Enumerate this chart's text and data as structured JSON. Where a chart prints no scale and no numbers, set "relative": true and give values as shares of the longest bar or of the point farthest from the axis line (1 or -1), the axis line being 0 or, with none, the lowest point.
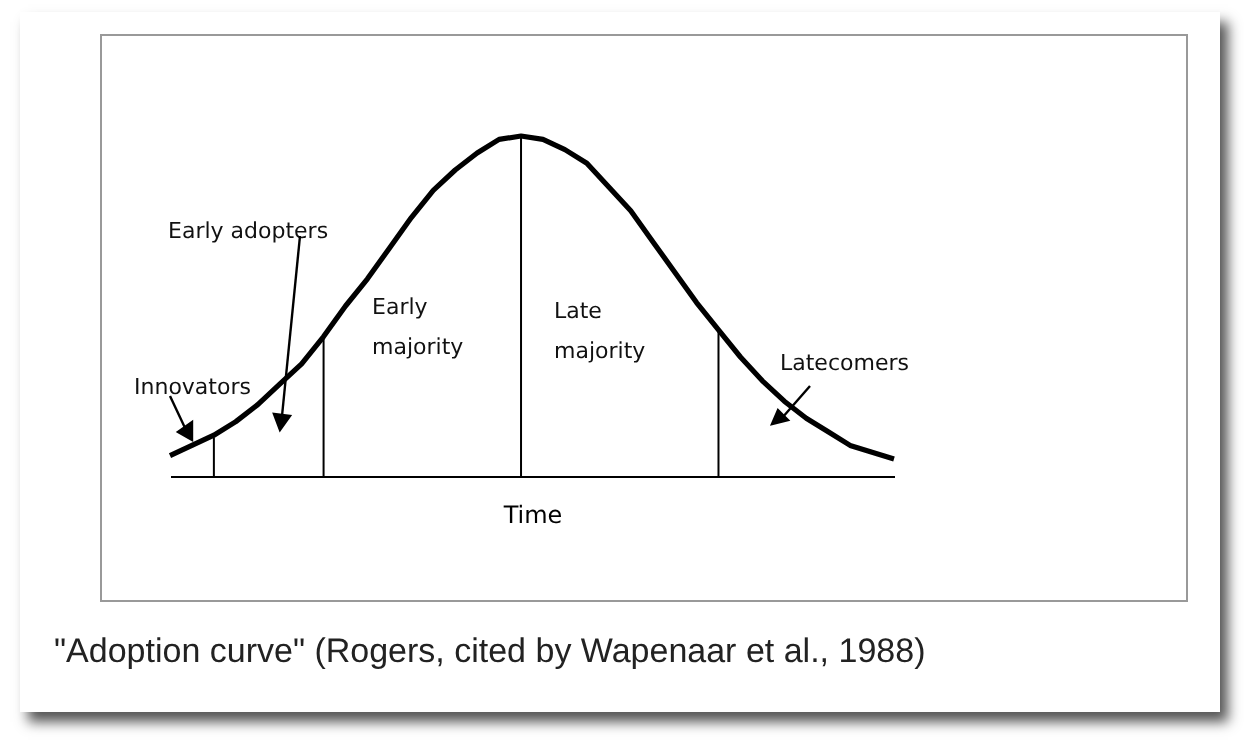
{
  "chart_data": {
    "type": "line",
    "relative": true,
    "xlabel": "Time",
    "tick_labels": false,
    "categories": [
      null,
      null,
      null,
      null,
      null,
      null,
      null,
      null,
      null,
      null,
      null,
      null,
      null,
      null,
      null,
      null,
      null,
      null,
      null,
      null,
      null,
      null,
      null,
      null,
      null,
      null,
      null,
      null,
      null,
      null,
      null,
      null,
      null,
      null
    ],
    "series": [
      {
        "color": "#000000",
        "values": [
          0.06,
          0.09,
          0.12,
          0.16,
          0.21,
          0.27,
          0.33,
          0.41,
          0.5,
          0.58,
          0.67,
          0.76,
          0.84,
          0.9,
          0.95,
          0.99,
          1.0,
          0.99,
          0.96,
          0.92,
          0.85,
          0.78,
          0.69,
          0.6,
          0.51,
          0.43,
          0.35,
          0.28,
          0.22,
          0.17,
          0.13,
          0.09,
          0.07,
          0.05
        ]
      }
    ],
    "annotations": [
      "Innovators",
      "Early adopters",
      "Early majority",
      "Late majority",
      "Latecomers",
      "\"Adoption curve\" (Rogers, cited by Wapenaar et al., 1988)"
    ]
  }
}
